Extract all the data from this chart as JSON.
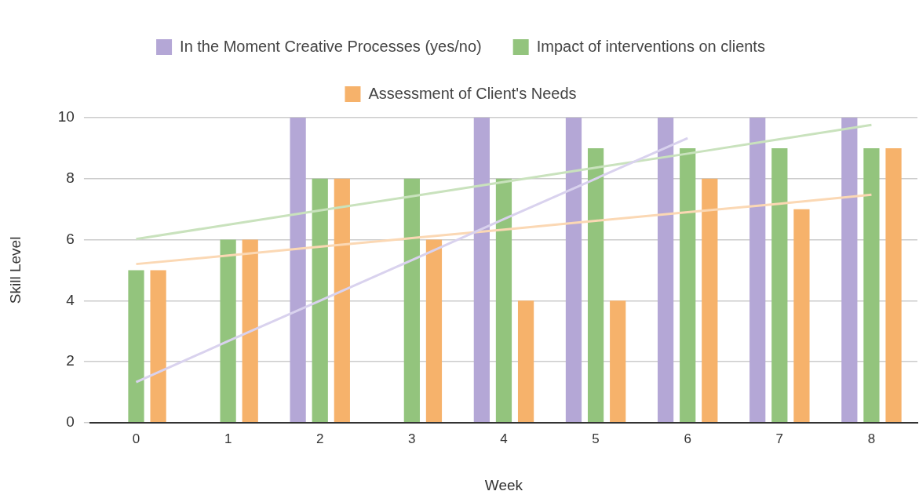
{
  "chart_data": {
    "type": "bar",
    "xlabel": "Week",
    "ylabel": "Skill Level",
    "categories": [
      "0",
      "1",
      "2",
      "3",
      "4",
      "5",
      "6",
      "7",
      "8"
    ],
    "ylim": [
      0,
      10
    ],
    "yticks": [
      0,
      2,
      4,
      6,
      8,
      10
    ],
    "grid": "y",
    "legend": "top",
    "series": [
      {
        "name": "In the Moment Creative Processes (yes/no)",
        "color": "#b4a7d6",
        "values": [
          0,
          0,
          10,
          0,
          10,
          10,
          10,
          10,
          10
        ]
      },
      {
        "name": "Impact of interventions on clients",
        "color": "#93c47d",
        "values": [
          5,
          6,
          8,
          8,
          8,
          9,
          9,
          9,
          9
        ]
      },
      {
        "name": "Assessment of Client's Needs",
        "color": "#f6b26b",
        "values": [
          5,
          6,
          8,
          6,
          4,
          4,
          8,
          7,
          9
        ]
      },
      {
        "type": "line",
        "color": "#d9d2ee",
        "values": [
          1.33,
          2.67,
          4,
          5.33,
          6.67,
          8,
          9.33,
          null,
          null
        ],
        "marker": "none"
      },
      {
        "type": "line",
        "color": "#c9e2bd",
        "values": [
          6.02,
          6.49,
          6.96,
          7.42,
          7.89,
          8.36,
          8.82,
          9.29,
          9.76
        ],
        "marker": "none"
      },
      {
        "type": "line",
        "color": "#fbd8b4",
        "values": [
          5.2,
          5.48,
          5.77,
          6.05,
          6.33,
          6.62,
          6.9,
          7.18,
          7.47
        ],
        "marker": "none"
      }
    ]
  }
}
